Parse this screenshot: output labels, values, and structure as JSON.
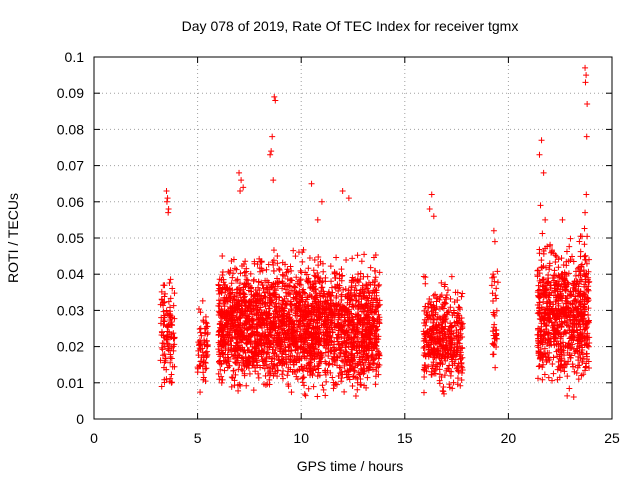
{
  "chart_data": {
    "type": "scatter",
    "title": "Day 078 of 2019, Rate Of TEC Index for receiver tgmx",
    "xlabel": "GPS time / hours",
    "ylabel": "ROTI / TECUs",
    "xlim": [
      0,
      25
    ],
    "ylim": [
      0,
      0.1
    ],
    "x_ticks": [
      {
        "value": 0,
        "label": "0"
      },
      {
        "value": 5,
        "label": "5"
      },
      {
        "value": 10,
        "label": "10"
      },
      {
        "value": 15,
        "label": "15"
      },
      {
        "value": 20,
        "label": "20"
      },
      {
        "value": 25,
        "label": "25"
      }
    ],
    "y_ticks": [
      {
        "value": 0,
        "label": "0"
      },
      {
        "value": 0.01,
        "label": "0.01"
      },
      {
        "value": 0.02,
        "label": "0.02"
      },
      {
        "value": 0.03,
        "label": "0.03"
      },
      {
        "value": 0.04,
        "label": "0.04"
      },
      {
        "value": 0.05,
        "label": "0.05"
      },
      {
        "value": 0.06,
        "label": "0.06"
      },
      {
        "value": 0.07,
        "label": "0.07"
      },
      {
        "value": 0.08,
        "label": "0.08"
      },
      {
        "value": 0.09,
        "label": "0.09"
      },
      {
        "value": 0.1,
        "label": "0.1"
      }
    ],
    "grid": true,
    "marker": "+",
    "marker_color": "#ff0000",
    "series": [
      {
        "name": "ROTI",
        "clusters": [
          {
            "x_start": 3.2,
            "x_end": 3.9,
            "y_min": 0.005,
            "y_max": 0.044,
            "density": 0.5
          },
          {
            "x_start": 5.0,
            "x_end": 5.5,
            "y_min": 0.005,
            "y_max": 0.036,
            "density": 0.45
          },
          {
            "x_start": 6.0,
            "x_end": 13.8,
            "y_min": 0.004,
            "y_max": 0.05,
            "density": 1.0
          },
          {
            "x_start": 15.9,
            "x_end": 17.8,
            "y_min": 0.005,
            "y_max": 0.042,
            "density": 0.7
          },
          {
            "x_start": 19.2,
            "x_end": 19.5,
            "y_min": 0.007,
            "y_max": 0.05,
            "density": 0.4
          },
          {
            "x_start": 21.4,
            "x_end": 23.9,
            "y_min": 0.005,
            "y_max": 0.056,
            "density": 1.0
          }
        ],
        "points": [
          [
            3.5,
            0.063
          ],
          [
            3.55,
            0.061
          ],
          [
            3.6,
            0.058
          ],
          [
            3.52,
            0.06
          ],
          [
            3.58,
            0.057
          ],
          [
            7.0,
            0.068
          ],
          [
            7.1,
            0.066
          ],
          [
            7.2,
            0.064
          ],
          [
            7.05,
            0.063
          ],
          [
            8.7,
            0.089
          ],
          [
            8.75,
            0.088
          ],
          [
            8.6,
            0.078
          ],
          [
            8.55,
            0.074
          ],
          [
            8.65,
            0.066
          ],
          [
            8.5,
            0.073
          ],
          [
            10.5,
            0.065
          ],
          [
            11.0,
            0.06
          ],
          [
            12.0,
            0.063
          ],
          [
            12.3,
            0.061
          ],
          [
            10.8,
            0.055
          ],
          [
            16.3,
            0.062
          ],
          [
            16.2,
            0.058
          ],
          [
            16.4,
            0.056
          ],
          [
            19.3,
            0.052
          ],
          [
            19.35,
            0.049
          ],
          [
            21.6,
            0.077
          ],
          [
            21.5,
            0.073
          ],
          [
            21.7,
            0.068
          ],
          [
            21.55,
            0.059
          ],
          [
            23.7,
            0.097
          ],
          [
            23.75,
            0.095
          ],
          [
            23.72,
            0.093
          ],
          [
            23.8,
            0.087
          ],
          [
            23.78,
            0.078
          ],
          [
            23.76,
            0.062
          ],
          [
            23.7,
            0.057
          ]
        ]
      }
    ]
  }
}
